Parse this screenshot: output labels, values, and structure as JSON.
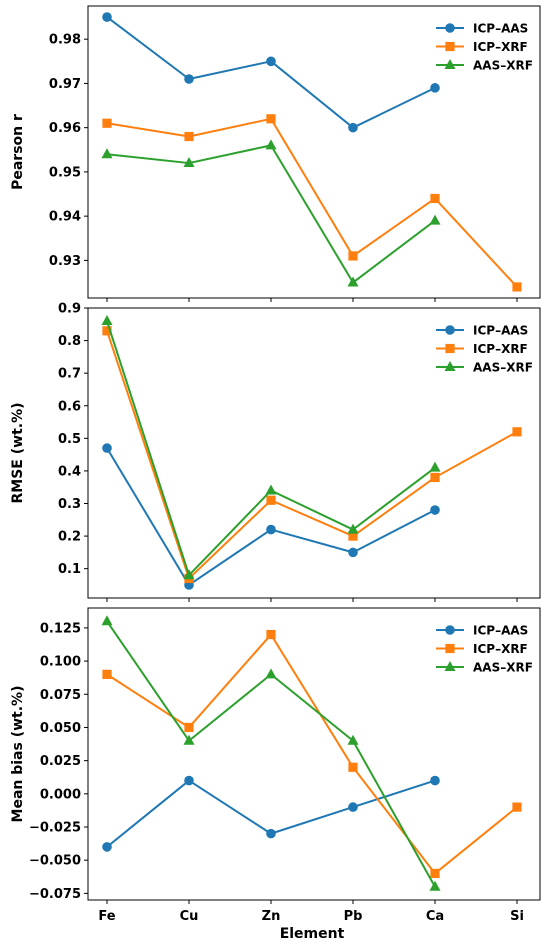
{
  "chart_data": {
    "type": "line",
    "categories": [
      "Fe",
      "Cu",
      "Zn",
      "Pb",
      "Ca",
      "Si"
    ],
    "xlabel": "Element",
    "panels": [
      {
        "ylabel": "Pearson r",
        "ylim": [
          0.9215,
          0.9875
        ],
        "yticks": [
          "0.93",
          "0.94",
          "0.95",
          "0.96",
          "0.97",
          "0.98"
        ],
        "legend_position": "top-right",
        "series": [
          {
            "name": "ICP–AAS",
            "color": "#1f77b4",
            "marker": "circle",
            "values": [
              0.985,
              0.971,
              0.975,
              0.96,
              0.969,
              null
            ]
          },
          {
            "name": "ICP–XRF",
            "color": "#ff7f0e",
            "marker": "square",
            "values": [
              0.961,
              0.958,
              0.962,
              0.931,
              0.944,
              0.924
            ]
          },
          {
            "name": "AAS–XRF",
            "color": "#2ca02c",
            "marker": "triangle",
            "values": [
              0.954,
              0.952,
              0.956,
              0.925,
              0.939,
              null
            ]
          }
        ]
      },
      {
        "ylabel": "RMSE (wt.%)",
        "ylim": [
          0.01,
          0.9
        ],
        "yticks": [
          "0.1",
          "0.2",
          "0.3",
          "0.4",
          "0.5",
          "0.6",
          "0.7",
          "0.8",
          "0.9"
        ],
        "legend_position": "top-right",
        "series": [
          {
            "name": "ICP–AAS",
            "color": "#1f77b4",
            "marker": "circle",
            "values": [
              0.47,
              0.05,
              0.22,
              0.15,
              0.28,
              null
            ]
          },
          {
            "name": "ICP–XRF",
            "color": "#ff7f0e",
            "marker": "square",
            "values": [
              0.83,
              0.07,
              0.31,
              0.2,
              0.38,
              0.52
            ]
          },
          {
            "name": "AAS–XRF",
            "color": "#2ca02c",
            "marker": "triangle",
            "values": [
              0.86,
              0.08,
              0.34,
              0.22,
              0.41,
              null
            ]
          }
        ]
      },
      {
        "ylabel": "Mean bias (wt.%)",
        "ylim": [
          -0.08,
          0.14
        ],
        "yticks": [
          "−0.075",
          "−0.050",
          "−0.025",
          "0.000",
          "0.025",
          "0.050",
          "0.075",
          "0.100",
          "0.125"
        ],
        "legend_position": "top-right",
        "series": [
          {
            "name": "ICP–AAS",
            "color": "#1f77b4",
            "marker": "circle",
            "values": [
              -0.04,
              0.01,
              -0.03,
              -0.01,
              0.01,
              null
            ]
          },
          {
            "name": "ICP–XRF",
            "color": "#ff7f0e",
            "marker": "square",
            "values": [
              0.09,
              0.05,
              0.12,
              0.02,
              -0.06,
              -0.01
            ]
          },
          {
            "name": "AAS–XRF",
            "color": "#2ca02c",
            "marker": "triangle",
            "values": [
              0.13,
              0.04,
              0.09,
              0.04,
              -0.07,
              null
            ]
          }
        ]
      }
    ]
  }
}
